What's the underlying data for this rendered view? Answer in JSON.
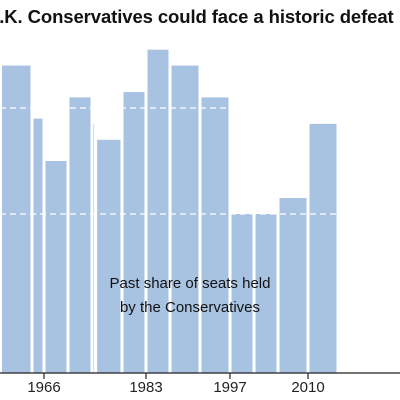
{
  "title": "U.K. Conservatives could face a historic defeat",
  "chart_data": {
    "type": "bar",
    "title": "U.K. Conservatives could face a historic defeat",
    "xlabel": "",
    "ylabel": "",
    "ylim": [
      0,
      70
    ],
    "grid": false,
    "reference_lines": [
      50,
      30
    ],
    "series": [
      {
        "name": "",
        "values": [
          {
            "start": 1959,
            "end": 1964,
            "value": 58
          },
          {
            "start": 1964,
            "end": 1966,
            "value": 48
          },
          {
            "start": 1966,
            "end": 1970,
            "value": 40
          },
          {
            "start": 1970,
            "end": 1974,
            "value": 52
          },
          {
            "start": 1974,
            "end": 1974.6,
            "value": 47
          },
          {
            "start": 1974.6,
            "end": 1979,
            "value": 44
          },
          {
            "start": 1979,
            "end": 1983,
            "value": 53
          },
          {
            "start": 1983,
            "end": 1987,
            "value": 61
          },
          {
            "start": 1987,
            "end": 1992,
            "value": 58
          },
          {
            "start": 1992,
            "end": 1997,
            "value": 52
          },
          {
            "start": 1997,
            "end": 2001,
            "value": 30
          },
          {
            "start": 2001,
            "end": 2005,
            "value": 30
          },
          {
            "start": 2005,
            "end": 2010,
            "value": 33
          },
          {
            "start": 2010,
            "end": 2015,
            "value": 47
          }
        ]
      }
    ],
    "xticks": [
      "1966",
      "1983",
      "1997",
      "2010"
    ],
    "annotation": {
      "lines": [
        "Past share of seats held",
        "by the Conservatives"
      ]
    },
    "colors": {
      "bar": "#a8c3e2",
      "axis": "#222222",
      "reference_line": "#ffffff"
    }
  }
}
